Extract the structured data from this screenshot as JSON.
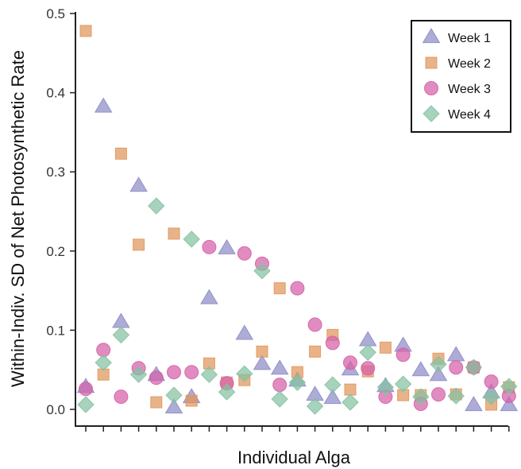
{
  "chart_data": {
    "type": "scatter",
    "xlabel": "Individual Alga",
    "ylabel": "Within-Indiv. SD of Net Photosynthetic Rate",
    "ylim": [
      0,
      0.5
    ],
    "yticks": [
      "0.0",
      "0.1",
      "0.2",
      "0.3",
      "0.4",
      "0.5"
    ],
    "x_count": 25,
    "legend_position": "top-right",
    "grid": false,
    "series": [
      {
        "name": "Week 1",
        "marker": "triangle",
        "color": "#8E8CC6",
        "points": [
          [
            1,
            0.028
          ],
          [
            2,
            0.382
          ],
          [
            3,
            0.11
          ],
          [
            4,
            0.282
          ],
          [
            5,
            0.043
          ],
          [
            6,
            0.002
          ],
          [
            7,
            0.015
          ],
          [
            8,
            0.14
          ],
          [
            9,
            0.203
          ],
          [
            10,
            0.095
          ],
          [
            11,
            0.057
          ],
          [
            12,
            0.051
          ],
          [
            13,
            0.036
          ],
          [
            14,
            0.018
          ],
          [
            15,
            0.014
          ],
          [
            16,
            0.05
          ],
          [
            17,
            0.087
          ],
          [
            18,
            0.029
          ],
          [
            19,
            0.08
          ],
          [
            20,
            0.049
          ],
          [
            21,
            0.043
          ],
          [
            22,
            0.068
          ],
          [
            23,
            0.005
          ],
          [
            24,
            0.021
          ],
          [
            25,
            0.005
          ]
        ]
      },
      {
        "name": "Week 2",
        "marker": "square",
        "color": "#E0965C",
        "points": [
          [
            1,
            0.478
          ],
          [
            2,
            0.044
          ],
          [
            3,
            0.323
          ],
          [
            4,
            0.208
          ],
          [
            5,
            0.009
          ],
          [
            6,
            0.222
          ],
          [
            7,
            0.011
          ],
          [
            8,
            0.058
          ],
          [
            9,
            0.034
          ],
          [
            10,
            0.037
          ],
          [
            11,
            0.073
          ],
          [
            12,
            0.153
          ],
          [
            13,
            0.047
          ],
          [
            14,
            0.073
          ],
          [
            15,
            0.094
          ],
          [
            16,
            0.025
          ],
          [
            17,
            0.048
          ],
          [
            18,
            0.078
          ],
          [
            19,
            0.018
          ],
          [
            20,
            0.018
          ],
          [
            21,
            0.064
          ],
          [
            22,
            0.019
          ],
          [
            23,
            0.053
          ],
          [
            24,
            0.006
          ],
          [
            25,
            0.028
          ]
        ]
      },
      {
        "name": "Week 3",
        "marker": "circle",
        "color": "#D55FA7",
        "points": [
          [
            1,
            0.026
          ],
          [
            2,
            0.075
          ],
          [
            3,
            0.016
          ],
          [
            4,
            0.052
          ],
          [
            5,
            0.04
          ],
          [
            6,
            0.047
          ],
          [
            7,
            0.047
          ],
          [
            8,
            0.205
          ],
          [
            9,
            0.033
          ],
          [
            10,
            0.197
          ],
          [
            11,
            0.184
          ],
          [
            12,
            0.031
          ],
          [
            13,
            0.153
          ],
          [
            14,
            0.107
          ],
          [
            15,
            0.084
          ],
          [
            16,
            0.059
          ],
          [
            17,
            0.052
          ],
          [
            18,
            0.016
          ],
          [
            19,
            0.069
          ],
          [
            20,
            0.007
          ],
          [
            21,
            0.019
          ],
          [
            22,
            0.053
          ],
          [
            23,
            0.053
          ],
          [
            24,
            0.035
          ],
          [
            25,
            0.017
          ]
        ]
      },
      {
        "name": "Week 4",
        "marker": "diamond",
        "color": "#85C1A2",
        "points": [
          [
            1,
            0.006
          ],
          [
            2,
            0.059
          ],
          [
            3,
            0.094
          ],
          [
            4,
            0.044
          ],
          [
            5,
            0.257
          ],
          [
            6,
            0.018
          ],
          [
            7,
            0.215
          ],
          [
            8,
            0.044
          ],
          [
            9,
            0.022
          ],
          [
            10,
            0.045
          ],
          [
            11,
            0.175
          ],
          [
            12,
            0.013
          ],
          [
            13,
            0.034
          ],
          [
            14,
            0.004
          ],
          [
            15,
            0.031
          ],
          [
            16,
            0.009
          ],
          [
            17,
            0.072
          ],
          [
            18,
            0.028
          ],
          [
            19,
            0.032
          ],
          [
            20,
            0.016
          ],
          [
            21,
            0.057
          ],
          [
            22,
            0.017
          ],
          [
            23,
            0.053
          ],
          [
            24,
            0.016
          ],
          [
            25,
            0.029
          ]
        ]
      }
    ]
  }
}
